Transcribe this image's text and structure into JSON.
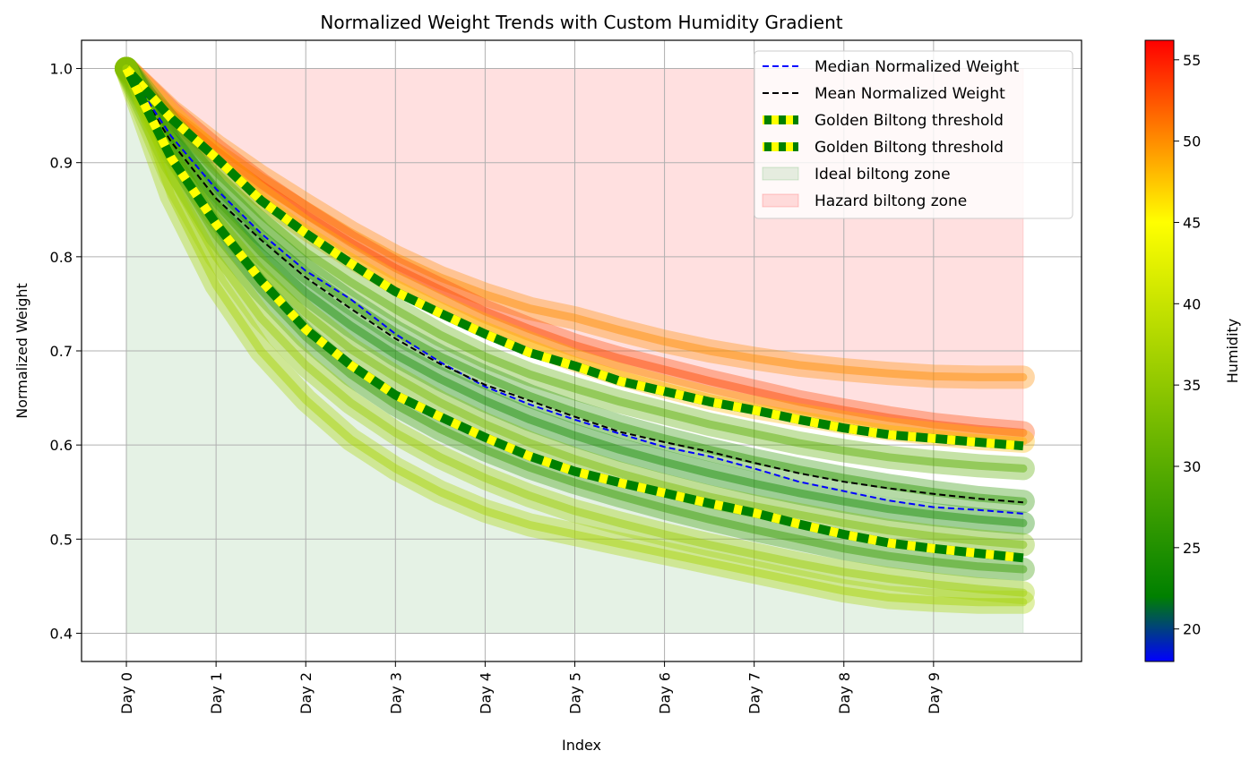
{
  "chart_data": {
    "type": "line",
    "title": "Normalized Weight Trends with Custom Humidity Gradient",
    "xlabel": "Index",
    "ylabel": "Normalized Weight",
    "xlim": [
      -0.5,
      10.65
    ],
    "ylim": [
      0.37,
      1.03
    ],
    "x_tick_values": [
      0,
      1,
      2,
      3,
      4,
      5,
      6,
      7,
      8,
      9
    ],
    "x_tick_labels": [
      "Day 0",
      "Day 1",
      "Day 2",
      "Day 3",
      "Day 4",
      "Day 5",
      "Day 6",
      "Day 7",
      "Day 8",
      "Day 9"
    ],
    "y_ticks": [
      0.4,
      0.5,
      0.6,
      0.7,
      0.8,
      0.9,
      1.0
    ],
    "y_tick_labels": [
      "0.4",
      "0.5",
      "0.6",
      "0.7",
      "0.8",
      "0.9",
      "1.0"
    ],
    "grid": true,
    "legend_position": "top-right",
    "x": [
      0,
      0.5,
      1,
      1.5,
      2,
      2.5,
      3,
      3.5,
      4,
      4.5,
      5,
      5.5,
      6,
      6.5,
      7,
      7.5,
      8,
      8.5,
      9,
      9.5,
      10
    ],
    "series": [
      {
        "name": "Median Normalized Weight",
        "color": "#0000ff",
        "style": "dashed",
        "values": [
          1.0,
          0.928,
          0.872,
          0.825,
          0.785,
          0.755,
          0.718,
          0.688,
          0.662,
          0.643,
          0.627,
          0.612,
          0.598,
          0.588,
          0.575,
          0.561,
          0.551,
          0.541,
          0.534,
          0.531,
          0.527
        ]
      },
      {
        "name": "Mean Normalized Weight",
        "color": "#000000",
        "style": "dashed",
        "values": [
          1.0,
          0.922,
          0.862,
          0.818,
          0.778,
          0.745,
          0.713,
          0.686,
          0.664,
          0.647,
          0.63,
          0.614,
          0.603,
          0.593,
          0.581,
          0.57,
          0.561,
          0.554,
          0.548,
          0.543,
          0.539
        ]
      },
      {
        "name": "Golden Biltong threshold",
        "color": "#008000",
        "dash_color": "#ffff00",
        "style": "thick-dashed",
        "values": [
          1.0,
          0.947,
          0.905,
          0.86,
          0.825,
          0.793,
          0.763,
          0.74,
          0.718,
          0.698,
          0.684,
          0.668,
          0.657,
          0.646,
          0.637,
          0.627,
          0.618,
          0.611,
          0.607,
          0.603,
          0.599
        ]
      },
      {
        "name": "Golden Biltong threshold",
        "color": "#008000",
        "dash_color": "#ffff00",
        "style": "thick-dashed",
        "values": [
          1.0,
          0.905,
          0.835,
          0.775,
          0.723,
          0.685,
          0.653,
          0.63,
          0.608,
          0.588,
          0.572,
          0.56,
          0.549,
          0.538,
          0.528,
          0.516,
          0.505,
          0.496,
          0.49,
          0.485,
          0.48
        ]
      }
    ],
    "zones": [
      {
        "name": "Ideal biltong zone",
        "x_range": [
          0,
          10
        ],
        "lower": 0.4,
        "color": "#008000",
        "opacity": 0.1
      },
      {
        "name": "Hazard biltong zone",
        "x_range": [
          0,
          10
        ],
        "upper": 1.0,
        "color": "#ff0000",
        "opacity": 0.12
      }
    ],
    "sample_bands": [
      {
        "humidity": 50,
        "values": [
          1.0,
          0.955,
          0.918,
          0.885,
          0.855,
          0.826,
          0.8,
          0.778,
          0.76,
          0.745,
          0.735,
          0.722,
          0.71,
          0.7,
          0.692,
          0.685,
          0.68,
          0.676,
          0.673,
          0.672,
          0.672
        ]
      },
      {
        "humidity": 53,
        "values": [
          1.0,
          0.953,
          0.913,
          0.877,
          0.845,
          0.815,
          0.788,
          0.765,
          0.742,
          0.723,
          0.706,
          0.692,
          0.68,
          0.668,
          0.657,
          0.646,
          0.637,
          0.629,
          0.622,
          0.617,
          0.613
        ]
      },
      {
        "humidity": 48,
        "values": [
          1.0,
          0.95,
          0.905,
          0.865,
          0.83,
          0.8,
          0.772,
          0.748,
          0.727,
          0.708,
          0.69,
          0.675,
          0.662,
          0.65,
          0.64,
          0.632,
          0.624,
          0.617,
          0.612,
          0.607,
          0.604
        ]
      },
      {
        "humidity": 30,
        "values": [
          1.0,
          0.94,
          0.89,
          0.845,
          0.805,
          0.773,
          0.744,
          0.717,
          0.694,
          0.675,
          0.66,
          0.646,
          0.634,
          0.622,
          0.612,
          0.602,
          0.594,
          0.587,
          0.582,
          0.578,
          0.575
        ]
      },
      {
        "humidity": 26,
        "values": [
          1.0,
          0.93,
          0.873,
          0.825,
          0.785,
          0.751,
          0.72,
          0.694,
          0.672,
          0.652,
          0.635,
          0.62,
          0.607,
          0.595,
          0.584,
          0.574,
          0.565,
          0.557,
          0.55,
          0.544,
          0.54
        ]
      },
      {
        "humidity": 24,
        "values": [
          1.0,
          0.92,
          0.857,
          0.805,
          0.762,
          0.727,
          0.696,
          0.67,
          0.647,
          0.627,
          0.61,
          0.595,
          0.582,
          0.57,
          0.559,
          0.549,
          0.54,
          0.532,
          0.526,
          0.521,
          0.517
        ]
      },
      {
        "humidity": 33,
        "values": [
          1.0,
          0.912,
          0.843,
          0.787,
          0.74,
          0.702,
          0.672,
          0.645,
          0.622,
          0.602,
          0.585,
          0.57,
          0.557,
          0.545,
          0.535,
          0.526,
          0.517,
          0.509,
          0.503,
          0.498,
          0.494
        ]
      },
      {
        "humidity": 27,
        "values": [
          1.0,
          0.9,
          0.823,
          0.765,
          0.715,
          0.675,
          0.643,
          0.617,
          0.595,
          0.576,
          0.56,
          0.546,
          0.533,
          0.521,
          0.51,
          0.5,
          0.49,
          0.482,
          0.476,
          0.471,
          0.468
        ]
      },
      {
        "humidity": 36,
        "values": [
          1.0,
          0.885,
          0.8,
          0.735,
          0.685,
          0.645,
          0.613,
          0.587,
          0.565,
          0.546,
          0.53,
          0.517,
          0.505,
          0.494,
          0.484,
          0.474,
          0.465,
          0.458,
          0.452,
          0.447,
          0.443
        ]
      },
      {
        "humidity": 37,
        "values": [
          1.0,
          0.865,
          0.77,
          0.7,
          0.648,
          0.606,
          0.575,
          0.55,
          0.53,
          0.515,
          0.505,
          0.495,
          0.485,
          0.475,
          0.465,
          0.455,
          0.445,
          0.438,
          0.435,
          0.433,
          0.433
        ]
      }
    ],
    "colorbar": {
      "label": "Humidity",
      "min": 18,
      "max": 56.2,
      "ticks": [
        20,
        25,
        30,
        35,
        40,
        45,
        50,
        55
      ],
      "tick_labels": [
        "20",
        "25",
        "30",
        "35",
        "40",
        "45",
        "50",
        "55"
      ],
      "stops": [
        {
          "value": 18,
          "color": "#0000ff"
        },
        {
          "value": 22,
          "color": "#008000"
        },
        {
          "value": 45,
          "color": "#ffff00"
        },
        {
          "value": 56.2,
          "color": "#ff0000"
        }
      ]
    },
    "legend": [
      {
        "label": "Median Normalized Weight",
        "kind": "dashed",
        "color": "#0000ff"
      },
      {
        "label": "Mean Normalized Weight",
        "kind": "dashed",
        "color": "#000000"
      },
      {
        "label": "Golden Biltong threshold",
        "kind": "thick-dashed",
        "color": "#008000",
        "dash_color": "#ffff00"
      },
      {
        "label": "Golden Biltong threshold",
        "kind": "thick-dashed",
        "color": "#008000",
        "dash_color": "#ffff00"
      },
      {
        "label": "Ideal biltong zone",
        "kind": "patch",
        "color": "#008000",
        "opacity": 0.1
      },
      {
        "label": "Hazard biltong zone",
        "kind": "patch",
        "color": "#ff0000",
        "opacity": 0.12
      }
    ]
  }
}
